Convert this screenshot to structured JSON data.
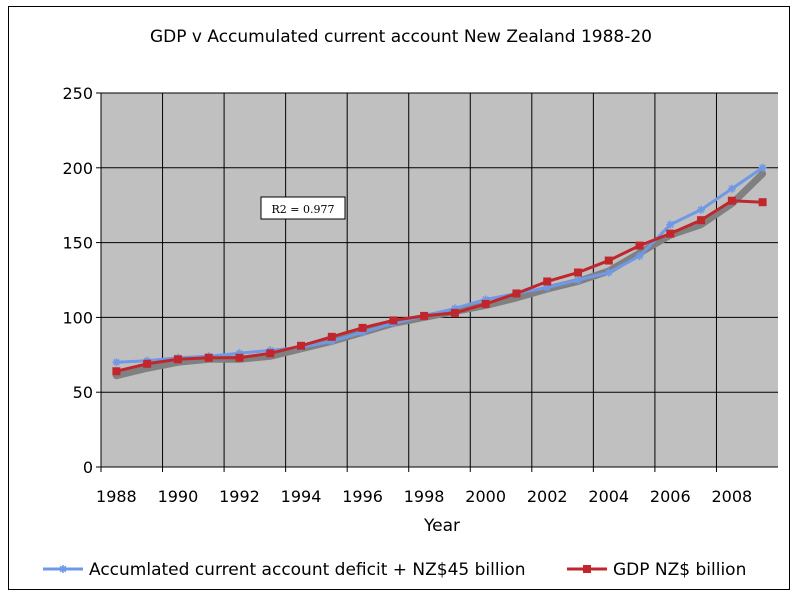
{
  "chart_data": {
    "type": "line",
    "title": "GDP v Accumulated current account  New Zealand  1988-20",
    "xlabel": "Year",
    "ylabel": "",
    "xlim": [
      1988,
      2009
    ],
    "ylim": [
      0,
      250
    ],
    "y_ticks": [
      0,
      50,
      100,
      150,
      200,
      250
    ],
    "x_tick_labels": [
      "1988",
      "1990",
      "1992",
      "1994",
      "1996",
      "1998",
      "2000",
      "2002",
      "2004",
      "2006",
      "2008"
    ],
    "grid": true,
    "legend_position": "bottom",
    "annotation": "R2 = 0.977",
    "x": [
      1988,
      1989,
      1990,
      1991,
      1992,
      1993,
      1994,
      1995,
      1996,
      1997,
      1998,
      1999,
      2000,
      2001,
      2002,
      2003,
      2004,
      2005,
      2006,
      2007,
      2008,
      2009
    ],
    "series": [
      {
        "name": "Accumlated current account deficit + NZ$45 billion",
        "color": "#6f98e6",
        "marker": "star",
        "values": [
          70,
          71,
          73,
          74,
          76,
          78,
          80,
          84,
          90,
          96,
          101,
          106,
          112,
          116,
          120,
          125,
          130,
          141,
          162,
          172,
          186,
          200
        ]
      },
      {
        "name": "GDP NZ$ billion",
        "color": "#c0272d",
        "marker": "square",
        "values": [
          64,
          69,
          72,
          73,
          73,
          76,
          81,
          87,
          93,
          98,
          101,
          103,
          109,
          116,
          124,
          130,
          138,
          148,
          156,
          165,
          178,
          177
        ]
      }
    ],
    "trend": {
      "color": "#808080",
      "values": [
        61,
        66,
        70,
        72,
        72,
        74,
        79,
        84,
        90,
        96,
        100,
        104,
        108,
        113,
        119,
        124,
        131,
        143,
        155,
        162,
        176,
        196
      ]
    }
  },
  "colors": {
    "plot_background": "#c0c0c0",
    "grid": "#000000"
  }
}
